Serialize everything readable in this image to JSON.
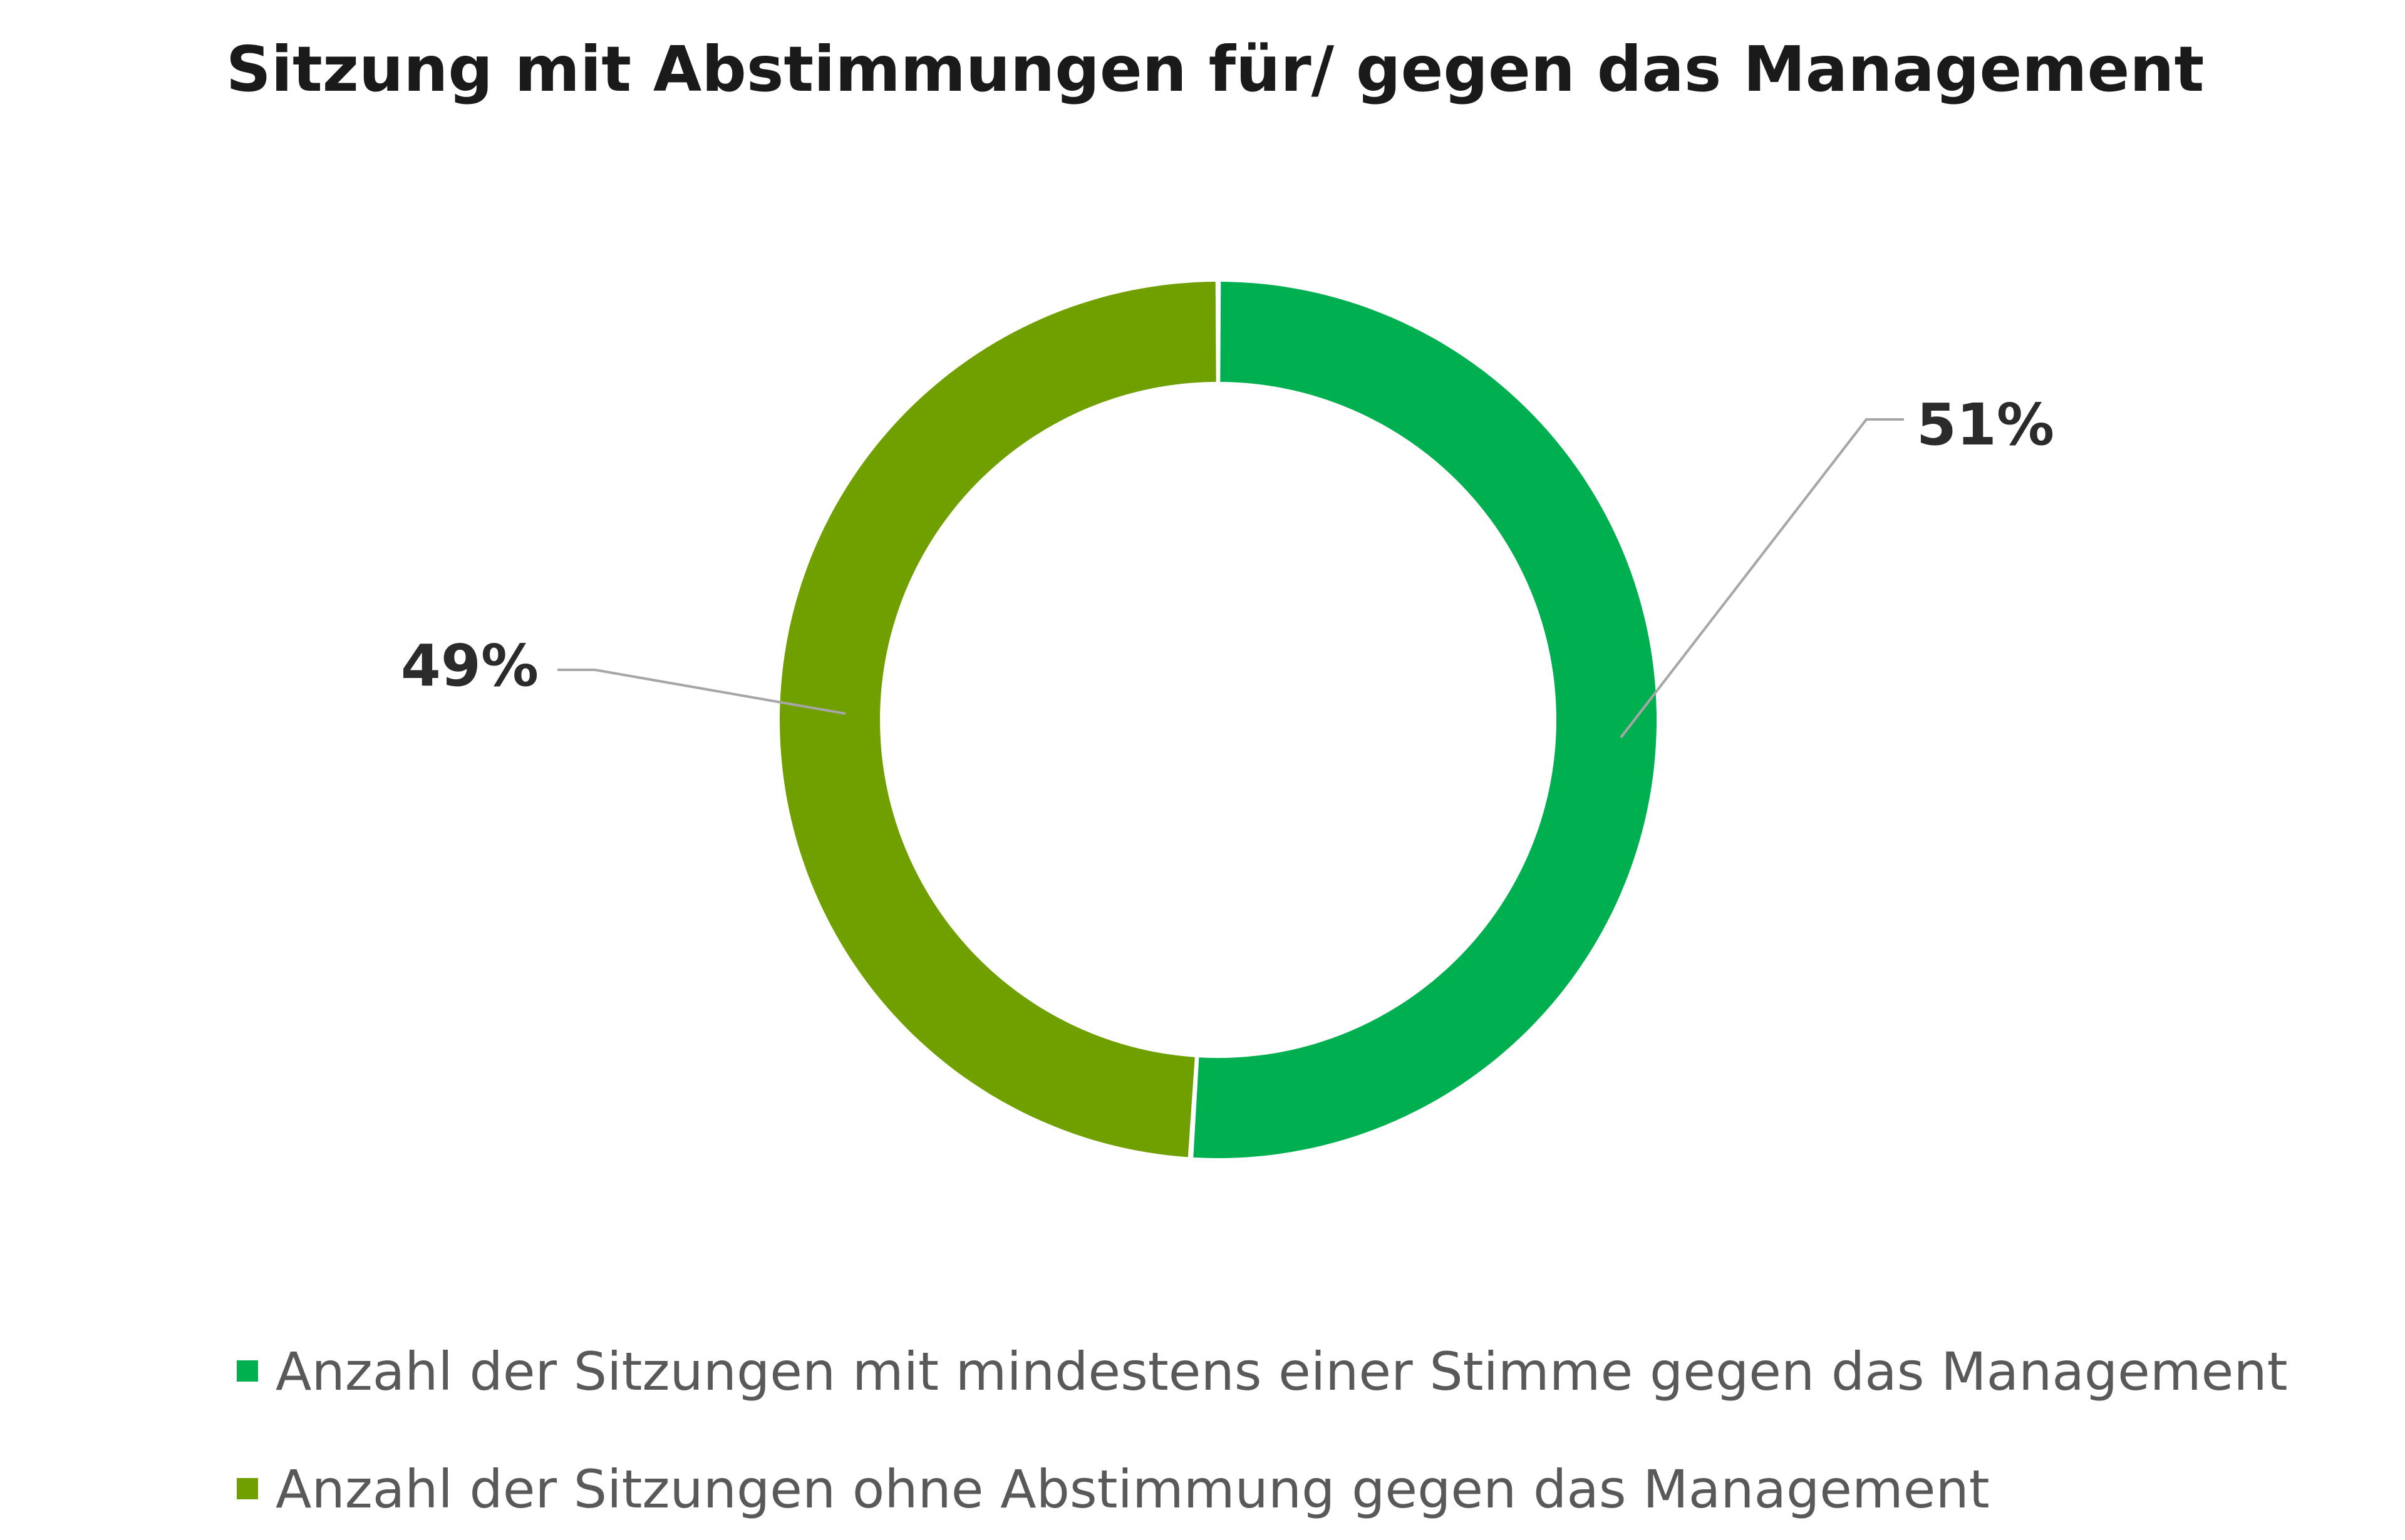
{
  "chart_data": {
    "type": "pie",
    "variant": "doughnut",
    "title": "Sitzung mit Abstimmungen für/ gegen das Management",
    "start_angle_deg": 0,
    "direction": "clockwise",
    "series": [
      {
        "name": "Anzahl der Sitzungen mit mindestens einer Stimme gegen das Management",
        "value": 51,
        "label": "51%",
        "color": "#00b050"
      },
      {
        "name": "Anzahl der Sitzungen ohne Abstimmung gegen das Management",
        "value": 49,
        "label": "49%",
        "color": "#70a000"
      }
    ],
    "legend_position": "bottom-left"
  }
}
